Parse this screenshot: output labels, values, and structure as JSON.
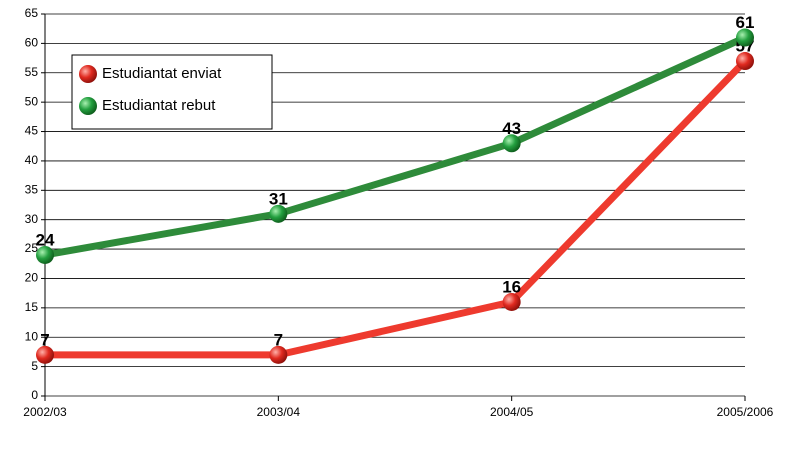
{
  "chart_data": {
    "type": "line",
    "categories": [
      "2002/03",
      "2003/04",
      "2004/05",
      "2005/2006"
    ],
    "series": [
      {
        "name": "Estudiantat enviat",
        "color": "#ee3a2e",
        "values": [
          7,
          7,
          16,
          57
        ]
      },
      {
        "name": "Estudiantat rebut",
        "color": "#2e8b3a",
        "values": [
          24,
          31,
          43,
          61
        ]
      }
    ],
    "ylim": [
      0,
      65
    ],
    "yticks": [
      0,
      5,
      10,
      15,
      20,
      25,
      30,
      35,
      40,
      45,
      50,
      55,
      60,
      65
    ],
    "grid": true,
    "legend": "upper left"
  }
}
